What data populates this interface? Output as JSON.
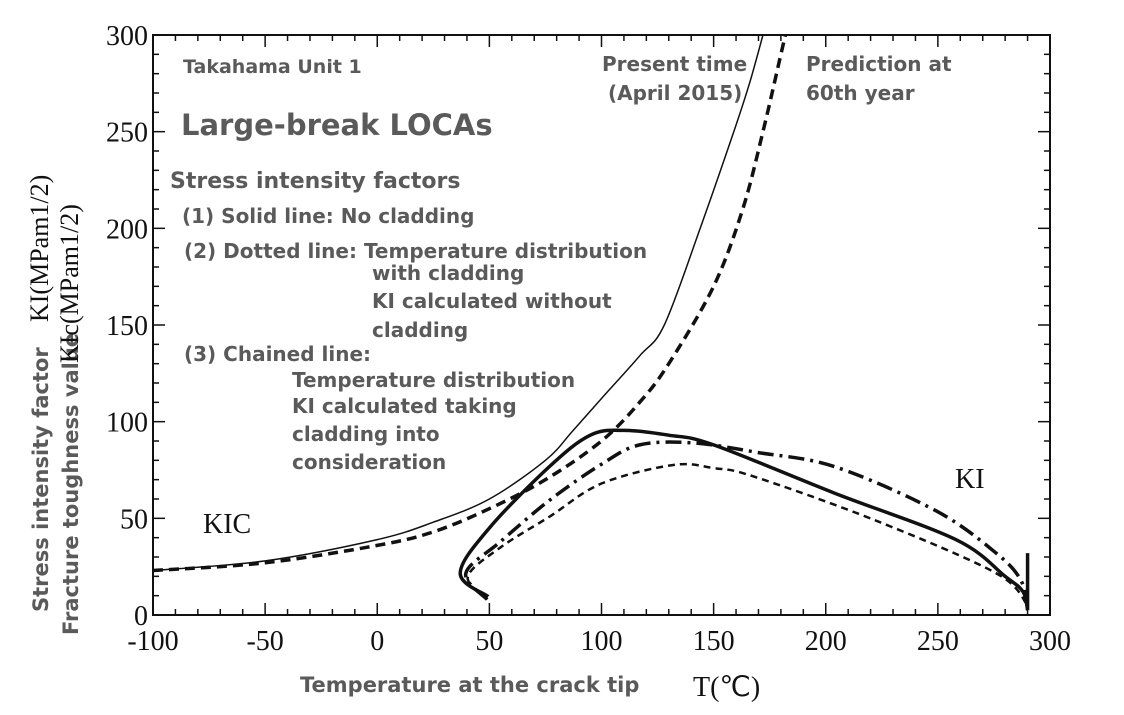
{
  "chart_data": {
    "type": "line",
    "title": "",
    "xlabel": "Temperature at the crack tip",
    "xlabel_symbol": "T(℃)",
    "ylabel_lines": [
      "Stress intensity factor",
      "Fracture toughness value"
    ],
    "ylabel_symbols": [
      "KI(MPam1/2)",
      "KIc(MPam1/2)"
    ],
    "xlim": [
      -100,
      300
    ],
    "ylim": [
      0,
      300
    ],
    "xticks": [
      "-100",
      "-50",
      "0",
      "50",
      "100",
      "150",
      "200",
      "250",
      "300"
    ],
    "yticks": [
      "0",
      "50",
      "100",
      "150",
      "200",
      "250",
      "300"
    ],
    "grid": false,
    "annotations": {
      "plant": "Takahama Unit 1",
      "scenario": "Large-break LOCAs",
      "legend_heading": "Stress intensity factors",
      "legend_lines": [
        "(1) Solid line: No cladding",
        "(2) Dotted line: Temperature distribution",
        "with cladding",
        "KI calculated without",
        "cladding",
        "(3) Chained line:",
        "Temperature distribution",
        "KI calculated taking",
        "cladding into",
        "consideration"
      ],
      "present_time": [
        "Present time",
        "(April 2015)"
      ],
      "prediction": [
        "Prediction at",
        "60th year"
      ],
      "kic_label": "KIC",
      "ki_label": "KI"
    },
    "series": [
      {
        "style": "solid-thin",
        "x": [
          -100,
          -50,
          0,
          25,
          50,
          75,
          87,
          100,
          117,
          128,
          144,
          159,
          166,
          172
        ],
        "y": [
          23,
          28,
          39,
          48,
          60,
          80,
          95,
          112,
          134,
          150,
          200,
          250,
          275,
          300
        ]
      },
      {
        "style": "dashed-thick",
        "x": [
          -100,
          -50,
          0,
          25,
          50,
          75,
          100,
          117,
          130,
          150,
          163,
          172,
          180,
          182
        ],
        "y": [
          23,
          27,
          36,
          43,
          55,
          70,
          90,
          110,
          130,
          170,
          210,
          250,
          290,
          300
        ]
      },
      {
        "style": "solid-thick",
        "x": [
          49.5,
          37,
          50,
          77,
          95,
          110,
          130,
          150,
          204,
          258,
          280,
          288,
          290
        ],
        "y": [
          9.5,
          21.6,
          45,
          77,
          93,
          95.5,
          93,
          88,
          63,
          39,
          20,
          12,
          2.5
        ]
      },
      {
        "style": "dash-dot",
        "x": [
          49,
          39.5,
          55,
          77,
          100,
          117,
          141,
          170,
          204,
          249,
          276,
          287,
          290
        ],
        "y": [
          8,
          21.6,
          38,
          59.5,
          78,
          88,
          89,
          84,
          76.7,
          54,
          32,
          18,
          3
        ]
      },
      {
        "style": "dotted-thin",
        "x": [
          49,
          40.4,
          55,
          77,
          100,
          132,
          150,
          168,
          222,
          276,
          290
        ],
        "y": [
          8,
          19.9,
          35,
          51,
          68,
          77.6,
          76,
          71.6,
          49,
          21.6,
          5
        ]
      },
      {
        "style": "solid-thick",
        "x": [
          290,
          290
        ],
        "y": [
          2.5,
          32
        ]
      }
    ]
  }
}
